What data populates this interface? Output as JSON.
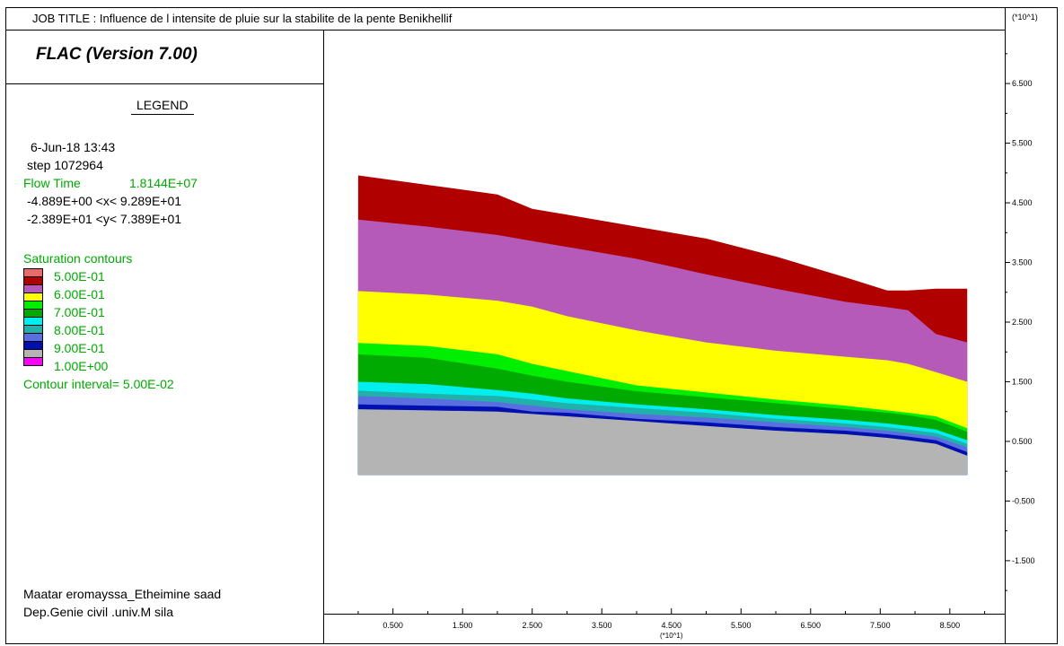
{
  "header": {
    "job_title": "JOB TITLE : Influence de l intensite de pluie sur la stabilite de la pente Benikhellif",
    "y_multiplier": "(*10^1)"
  },
  "legend": {
    "program": "FLAC (Version 7.00)",
    "heading": "LEGEND",
    "date_time": "6-Jun-18  13:43",
    "step": "step  1072964",
    "flow_time_label": "Flow Time",
    "flow_time_value": "1.8144E+07",
    "x_range": "-4.889E+00 <x<  9.289E+01",
    "y_range": "-2.389E+01 <y<  7.389E+01",
    "contours_title": "Saturation contours",
    "contour_interval": "Contour interval=  5.00E-02",
    "swatches": [
      {
        "color": "#e86b6b"
      },
      {
        "color": "#b00000"
      },
      {
        "color": "#b65ab9"
      },
      {
        "color": "#ffff00"
      },
      {
        "color": "#00ee00"
      },
      {
        "color": "#00aa00"
      },
      {
        "color": "#00eeee"
      },
      {
        "color": "#20b2aa"
      },
      {
        "color": "#5a6ee0"
      },
      {
        "color": "#0010b0"
      },
      {
        "color": "#b4b4b4"
      },
      {
        "color": "#ff00ff"
      }
    ]
  },
  "footer": {
    "line1": "Maatar eromayssa_Etheimine saad",
    "line2": "Dep.Genie civil .univ.M sila"
  },
  "chart_data": {
    "type": "area",
    "title": "Saturation contours",
    "x_multiplier": "(*10^1)",
    "y_multiplier": "(*10^1)",
    "xlim": [
      -0.4889,
      9.289
    ],
    "ylim": [
      -2.389,
      7.389
    ],
    "x_ticks": [
      "0.500",
      "1.500",
      "2.500",
      "3.500",
      "4.500",
      "5.500",
      "6.500",
      "7.500",
      "8.500"
    ],
    "y_ticks": [
      "6.500",
      "5.500",
      "4.500",
      "3.500",
      "2.500",
      "1.500",
      "0.500",
      "-0.500",
      "-1.500"
    ],
    "contour_levels": [
      "5.00E-01",
      "6.00E-01",
      "7.00E-01",
      "8.00E-01",
      "9.00E-01",
      "1.00E+00"
    ],
    "boundary_x": [
      0.0,
      1.0,
      2.0,
      2.5,
      3.0,
      4.0,
      5.0,
      6.0,
      7.0,
      7.6,
      7.9,
      8.3,
      8.75
    ],
    "bands": [
      {
        "color": "#b00000",
        "top": [
          4.96,
          4.8,
          4.64,
          4.4,
          4.3,
          4.1,
          3.9,
          3.6,
          3.25,
          3.03,
          3.03,
          3.06,
          3.06
        ]
      },
      {
        "color": "#b65ab9",
        "top": [
          4.22,
          4.1,
          3.96,
          3.86,
          3.76,
          3.56,
          3.3,
          3.06,
          2.84,
          2.75,
          2.7,
          2.3,
          2.16
        ]
      },
      {
        "color": "#ffff00",
        "top": [
          3.02,
          2.96,
          2.86,
          2.76,
          2.6,
          2.36,
          2.16,
          2.02,
          1.92,
          1.86,
          1.8,
          1.66,
          1.5
        ]
      },
      {
        "color": "#00ee00",
        "top": [
          2.15,
          2.1,
          1.96,
          1.8,
          1.68,
          1.44,
          1.32,
          1.2,
          1.1,
          1.02,
          0.98,
          0.92,
          0.72
        ]
      },
      {
        "color": "#00aa00",
        "top": [
          1.96,
          1.9,
          1.72,
          1.6,
          1.5,
          1.34,
          1.24,
          1.14,
          1.04,
          0.98,
          0.94,
          0.86,
          0.66
        ]
      },
      {
        "color": "#00eeee",
        "top": [
          1.5,
          1.46,
          1.36,
          1.3,
          1.22,
          1.12,
          1.04,
          0.94,
          0.86,
          0.8,
          0.76,
          0.7,
          0.52
        ]
      },
      {
        "color": "#20b2aa",
        "top": [
          1.35,
          1.3,
          1.26,
          1.2,
          1.14,
          1.06,
          0.98,
          0.88,
          0.8,
          0.74,
          0.7,
          0.64,
          0.46
        ]
      },
      {
        "color": "#5a6ee0",
        "top": [
          1.26,
          1.22,
          1.16,
          1.1,
          1.04,
          0.96,
          0.9,
          0.82,
          0.74,
          0.68,
          0.64,
          0.58,
          0.4
        ]
      },
      {
        "color": "#0010b0",
        "top": [
          1.12,
          1.1,
          1.08,
          1.0,
          0.98,
          0.88,
          0.82,
          0.74,
          0.68,
          0.62,
          0.58,
          0.52,
          0.32
        ]
      },
      {
        "color": "#b4b4b4",
        "top": [
          1.04,
          1.02,
          1.0,
          0.96,
          0.92,
          0.84,
          0.76,
          0.68,
          0.62,
          0.56,
          0.52,
          0.46,
          0.26
        ]
      }
    ],
    "base_y": -0.06
  }
}
